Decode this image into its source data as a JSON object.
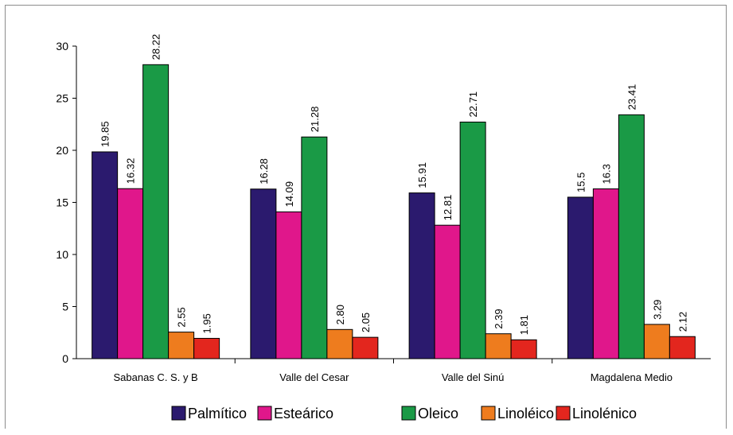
{
  "chart_data": {
    "type": "bar",
    "categories": [
      "Sabanas C. S. y B",
      "Valle del Cesar",
      "Valle del Sinú",
      "Magdalena Medio"
    ],
    "series": [
      {
        "name": "Palmítico",
        "color": "#2b1a6e",
        "values": [
          19.85,
          16.28,
          15.91,
          15.5
        ],
        "labels": [
          "19.85",
          "16.28",
          "15.91",
          "15.5"
        ]
      },
      {
        "name": "Esteárico",
        "color": "#e0178b",
        "values": [
          16.32,
          14.09,
          12.81,
          16.3
        ],
        "labels": [
          "16.32",
          "14.09",
          "12.81",
          "16.3"
        ]
      },
      {
        "name": "Oleico",
        "color": "#1a9a46",
        "values": [
          28.22,
          21.28,
          22.71,
          23.41
        ],
        "labels": [
          "28.22",
          "21.28",
          "22.71",
          "23.41"
        ]
      },
      {
        "name": "Linoléico",
        "color": "#ee7c1e",
        "values": [
          2.55,
          2.8,
          2.39,
          3.29
        ],
        "labels": [
          "2.55",
          "2.80",
          "2.39",
          "3.29"
        ]
      },
      {
        "name": "Linolénico",
        "color": "#e3261e",
        "values": [
          1.95,
          2.05,
          1.81,
          2.12
        ],
        "labels": [
          "1.95",
          "2.05",
          "1.81",
          "2.12"
        ]
      }
    ],
    "yticks": [
      "0",
      "5",
      "10",
      "15",
      "20",
      "25",
      "30"
    ],
    "ylim": [
      0,
      30
    ],
    "grid": false,
    "legend": "bottom"
  }
}
